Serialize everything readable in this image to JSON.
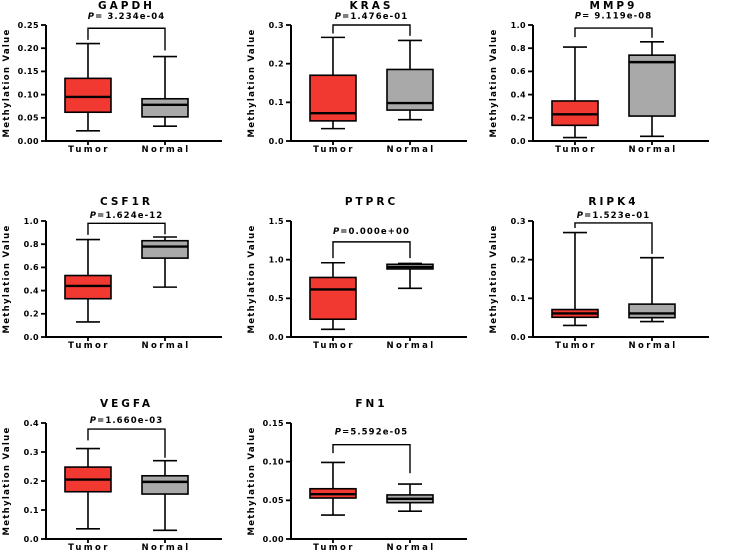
{
  "figure": {
    "background": "#FFFFFF",
    "text_color": "#000000",
    "tumor_color": "#F23931",
    "normal_color": "#A9A9A9",
    "categories": [
      "Tumor",
      "Normal"
    ]
  },
  "chart_data": [
    {
      "type": "box",
      "title": "GAPDH",
      "p_label": "P= 3.234e-04",
      "ylabel": "Methylation Value",
      "ylim": [
        0,
        0.25
      ],
      "yticks": [
        {
          "value": 0.0,
          "label": "0.00"
        },
        {
          "value": 0.05,
          "label": "0.05"
        },
        {
          "value": 0.1,
          "label": "0.10"
        },
        {
          "value": 0.15,
          "label": "0.15"
        },
        {
          "value": 0.2,
          "label": "0.20"
        },
        {
          "value": 0.25,
          "label": "0.25"
        }
      ],
      "series": [
        {
          "name": "Tumor",
          "fill": "#F23931",
          "whisker_low": 0.022,
          "q1": 0.062,
          "median": 0.095,
          "q3": 0.135,
          "whisker_high": 0.21
        },
        {
          "name": "Normal",
          "fill": "#A9A9A9",
          "whisker_low": 0.032,
          "q1": 0.052,
          "median": 0.078,
          "q3": 0.091,
          "whisker_high": 0.182
        }
      ],
      "bracket": {
        "y": 0.243,
        "left_drop_to": 0.218,
        "right_drop_to": 0.195
      },
      "p_label_y": 0.263
    },
    {
      "type": "box",
      "title": "KRAS",
      "p_label": "P=1.476e-01",
      "ylabel": "Methylation Value",
      "ylim": [
        0,
        0.3
      ],
      "yticks": [
        {
          "value": 0.0,
          "label": "0.0"
        },
        {
          "value": 0.1,
          "label": "0.1"
        },
        {
          "value": 0.2,
          "label": "0.2"
        },
        {
          "value": 0.3,
          "label": "0.3"
        }
      ],
      "series": [
        {
          "name": "Tumor",
          "fill": "#F23931",
          "whisker_low": 0.032,
          "q1": 0.052,
          "median": 0.072,
          "q3": 0.17,
          "whisker_high": 0.268
        },
        {
          "name": "Normal",
          "fill": "#A9A9A9",
          "whisker_low": 0.055,
          "q1": 0.08,
          "median": 0.098,
          "q3": 0.185,
          "whisker_high": 0.26
        }
      ],
      "bracket": {
        "y": 0.3,
        "left_drop_to": 0.278,
        "right_drop_to": 0.272
      },
      "p_label_y": 0.315
    },
    {
      "type": "box",
      "title": "MMP9",
      "p_label": "P= 9.119e-08",
      "ylabel": "Methylation Value",
      "ylim": [
        0,
        1.0
      ],
      "yticks": [
        {
          "value": 0.0,
          "label": "0.0"
        },
        {
          "value": 0.2,
          "label": "0.2"
        },
        {
          "value": 0.4,
          "label": "0.4"
        },
        {
          "value": 0.6,
          "label": "0.6"
        },
        {
          "value": 0.8,
          "label": "0.8"
        },
        {
          "value": 1.0,
          "label": "1.0"
        }
      ],
      "series": [
        {
          "name": "Tumor",
          "fill": "#F23931",
          "whisker_low": 0.03,
          "q1": 0.135,
          "median": 0.23,
          "q3": 0.345,
          "whisker_high": 0.81
        },
        {
          "name": "Normal",
          "fill": "#A9A9A9",
          "whisker_low": 0.04,
          "q1": 0.215,
          "median": 0.68,
          "q3": 0.74,
          "whisker_high": 0.855
        }
      ],
      "bracket": {
        "y": 0.974,
        "left_drop_to": 0.895,
        "right_drop_to": 0.89
      },
      "p_label_y": 1.055
    },
    {
      "type": "box",
      "title": "CSF1R",
      "p_label": "P=1.624e-12",
      "ylabel": "Methylation Value",
      "ylim": [
        0,
        1.0
      ],
      "yticks": [
        {
          "value": 0.0,
          "label": "0.0"
        },
        {
          "value": 0.2,
          "label": "0.2"
        },
        {
          "value": 0.4,
          "label": "0.4"
        },
        {
          "value": 0.6,
          "label": "0.6"
        },
        {
          "value": 0.8,
          "label": "0.8"
        },
        {
          "value": 1.0,
          "label": "1.0"
        }
      ],
      "series": [
        {
          "name": "Tumor",
          "fill": "#F23931",
          "whisker_low": 0.13,
          "q1": 0.33,
          "median": 0.44,
          "q3": 0.53,
          "whisker_high": 0.84
        },
        {
          "name": "Normal",
          "fill": "#A9A9A9",
          "whisker_low": 0.43,
          "q1": 0.68,
          "median": 0.78,
          "q3": 0.83,
          "whisker_high": 0.862
        }
      ],
      "bracket": {
        "y": 0.98,
        "left_drop_to": 0.88,
        "right_drop_to": 0.885
      },
      "p_label_y": 1.026
    },
    {
      "type": "box",
      "title": "PTPRC",
      "p_label": "P=0.000e+00",
      "ylabel": "Methylation Value",
      "ylim": [
        0,
        1.5
      ],
      "yticks": [
        {
          "value": 0.0,
          "label": "0.0"
        },
        {
          "value": 0.5,
          "label": "0.5"
        },
        {
          "value": 1.0,
          "label": "1.0"
        },
        {
          "value": 1.5,
          "label": "1.5"
        }
      ],
      "series": [
        {
          "name": "Tumor",
          "fill": "#F23931",
          "whisker_low": 0.1,
          "q1": 0.23,
          "median": 0.615,
          "q3": 0.77,
          "whisker_high": 0.96
        },
        {
          "name": "Normal",
          "fill": "#A9A9A9",
          "whisker_low": 0.63,
          "q1": 0.88,
          "median": 0.905,
          "q3": 0.94,
          "whisker_high": 0.952
        }
      ],
      "bracket": {
        "y": 1.23,
        "left_drop_to": 1.02,
        "right_drop_to": 1.02
      },
      "p_label_y": 1.33
    },
    {
      "type": "box",
      "title": "RIPK4",
      "p_label": "P=1.523e-01",
      "ylabel": "Methylation Value",
      "ylim": [
        0,
        0.3
      ],
      "yticks": [
        {
          "value": 0.0,
          "label": "0.0"
        },
        {
          "value": 0.1,
          "label": "0.1"
        },
        {
          "value": 0.2,
          "label": "0.2"
        },
        {
          "value": 0.3,
          "label": "0.3"
        }
      ],
      "series": [
        {
          "name": "Tumor",
          "fill": "#F23931",
          "whisker_low": 0.03,
          "q1": 0.051,
          "median": 0.061,
          "q3": 0.071,
          "whisker_high": 0.27
        },
        {
          "name": "Normal",
          "fill": "#A9A9A9",
          "whisker_low": 0.04,
          "q1": 0.05,
          "median": 0.061,
          "q3": 0.085,
          "whisker_high": 0.205
        }
      ],
      "bracket": {
        "y": 0.295,
        "left_drop_to": 0.282,
        "right_drop_to": 0.215
      },
      "p_label_y": 0.308
    },
    {
      "type": "box",
      "title": "VEGFA",
      "p_label": "P=1.660e-03",
      "ylabel": "Methylation Value",
      "ylim": [
        0,
        0.4
      ],
      "yticks": [
        {
          "value": 0.0,
          "label": "0.0"
        },
        {
          "value": 0.1,
          "label": "0.1"
        },
        {
          "value": 0.2,
          "label": "0.2"
        },
        {
          "value": 0.3,
          "label": "0.3"
        },
        {
          "value": 0.4,
          "label": "0.4"
        }
      ],
      "series": [
        {
          "name": "Tumor",
          "fill": "#F23931",
          "whisker_low": 0.035,
          "q1": 0.163,
          "median": 0.205,
          "q3": 0.248,
          "whisker_high": 0.312
        },
        {
          "name": "Normal",
          "fill": "#A9A9A9",
          "whisker_low": 0.03,
          "q1": 0.155,
          "median": 0.197,
          "q3": 0.218,
          "whisker_high": 0.27
        }
      ],
      "bracket": {
        "y": 0.379,
        "left_drop_to": 0.34,
        "right_drop_to": 0.28
      },
      "p_label_y": 0.4
    },
    {
      "type": "box",
      "title": "FN1",
      "p_label": "P=5.592e-05",
      "ylabel": "Methylation Value",
      "ylim": [
        0,
        0.15
      ],
      "yticks": [
        {
          "value": 0.0,
          "label": "0.00"
        },
        {
          "value": 0.05,
          "label": "0.05"
        },
        {
          "value": 0.1,
          "label": "0.10"
        },
        {
          "value": 0.15,
          "label": "0.15"
        }
      ],
      "series": [
        {
          "name": "Tumor",
          "fill": "#F23931",
          "whisker_low": 0.031,
          "q1": 0.053,
          "median": 0.058,
          "q3": 0.065,
          "whisker_high": 0.099
        },
        {
          "name": "Normal",
          "fill": "#A9A9A9",
          "whisker_low": 0.036,
          "q1": 0.047,
          "median": 0.052,
          "q3": 0.057,
          "whisker_high": 0.071
        }
      ],
      "bracket": {
        "y": 0.122,
        "left_drop_to": 0.111,
        "right_drop_to": 0.085
      },
      "p_label_y": 0.135
    }
  ]
}
